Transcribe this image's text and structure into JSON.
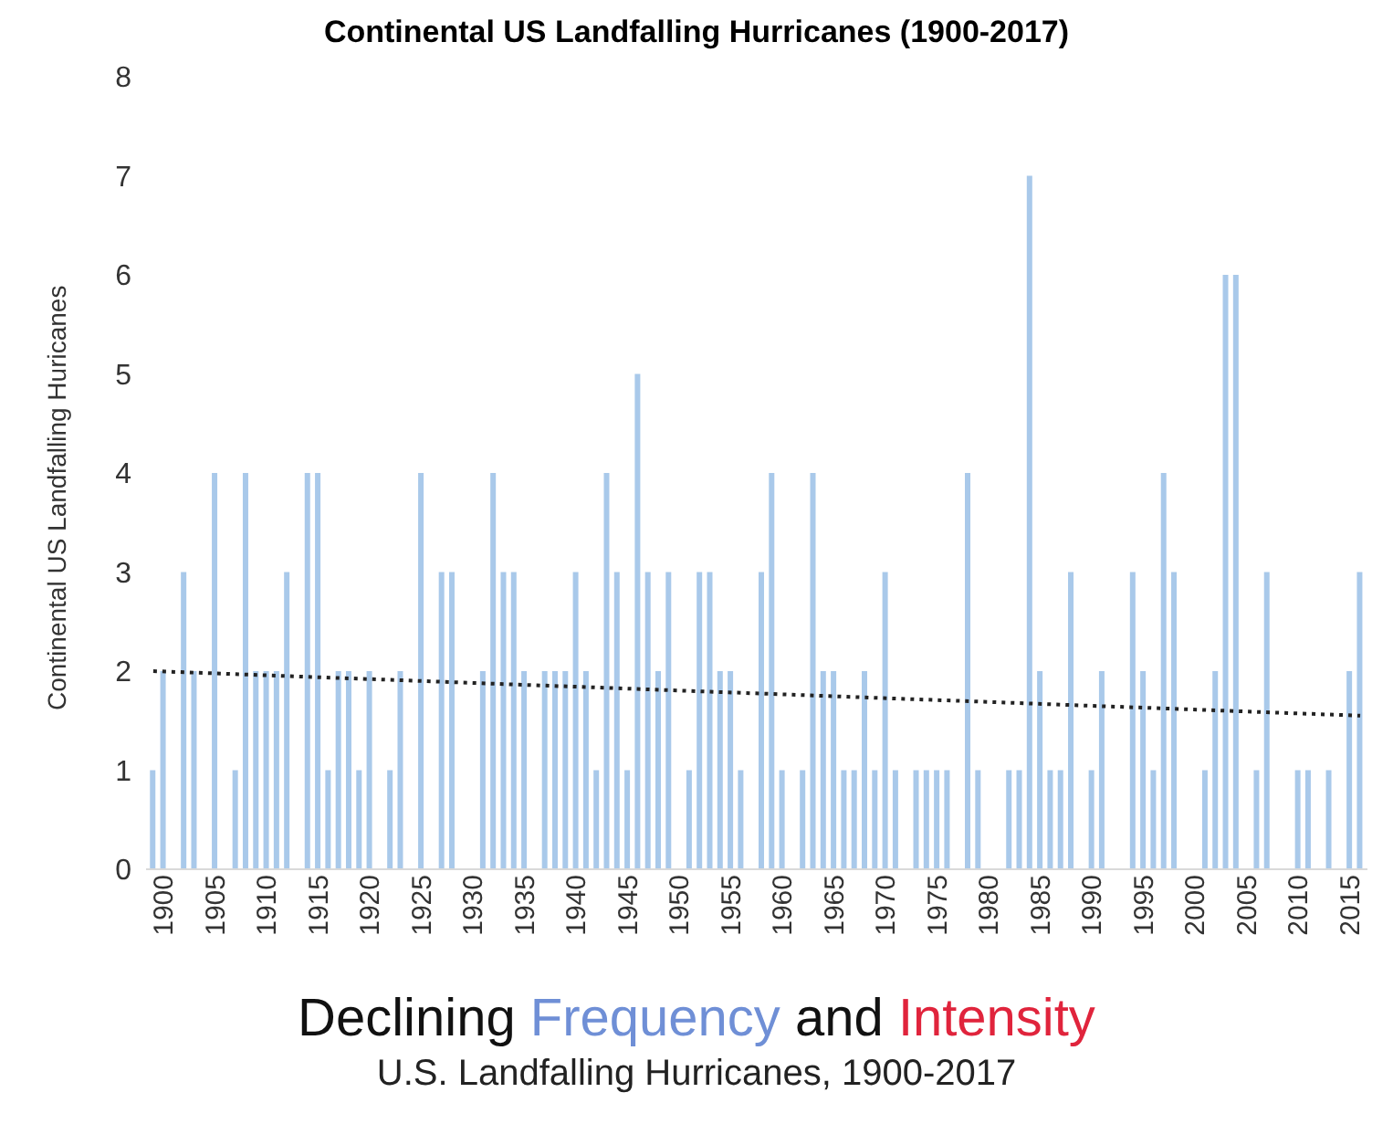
{
  "chart_data": {
    "type": "bar",
    "title": "Continental US Landfalling Hurricanes (1900-2017)",
    "ylabel": "Continental US Landfalling Huricanes",
    "x": [
      1900,
      1901,
      1902,
      1903,
      1904,
      1905,
      1906,
      1907,
      1908,
      1909,
      1910,
      1911,
      1912,
      1913,
      1914,
      1915,
      1916,
      1917,
      1918,
      1919,
      1920,
      1921,
      1922,
      1923,
      1924,
      1925,
      1926,
      1927,
      1928,
      1929,
      1930,
      1931,
      1932,
      1933,
      1934,
      1935,
      1936,
      1937,
      1938,
      1939,
      1940,
      1941,
      1942,
      1943,
      1944,
      1945,
      1946,
      1947,
      1948,
      1949,
      1950,
      1951,
      1952,
      1953,
      1954,
      1955,
      1956,
      1957,
      1958,
      1959,
      1960,
      1961,
      1962,
      1963,
      1964,
      1965,
      1966,
      1967,
      1968,
      1969,
      1970,
      1971,
      1972,
      1973,
      1974,
      1975,
      1976,
      1977,
      1978,
      1979,
      1980,
      1981,
      1982,
      1983,
      1984,
      1985,
      1986,
      1987,
      1988,
      1989,
      1990,
      1991,
      1992,
      1993,
      1994,
      1995,
      1996,
      1997,
      1998,
      1999,
      2000,
      2001,
      2002,
      2003,
      2004,
      2005,
      2006,
      2007,
      2008,
      2009,
      2010,
      2011,
      2012,
      2013,
      2014,
      2015,
      2016,
      2017
    ],
    "series": [
      {
        "color": "#a9c9ea",
        "values": [
          1,
          2,
          0,
          3,
          2,
          0,
          4,
          0,
          1,
          4,
          2,
          2,
          2,
          3,
          0,
          4,
          4,
          1,
          2,
          2,
          1,
          2,
          0,
          1,
          2,
          0,
          4,
          0,
          3,
          3,
          0,
          0,
          2,
          4,
          3,
          3,
          2,
          0,
          2,
          2,
          2,
          3,
          2,
          1,
          4,
          3,
          1,
          5,
          3,
          2,
          3,
          0,
          1,
          3,
          3,
          2,
          2,
          1,
          0,
          3,
          4,
          1,
          0,
          1,
          4,
          2,
          2,
          1,
          1,
          2,
          1,
          3,
          1,
          0,
          1,
          1,
          1,
          1,
          0,
          4,
          1,
          0,
          0,
          1,
          1,
          7,
          2,
          1,
          1,
          3,
          0,
          1,
          2,
          0,
          0,
          3,
          2,
          1,
          4,
          3,
          0,
          0,
          1,
          2,
          6,
          6,
          0,
          1,
          3,
          0,
          0,
          1,
          1,
          0,
          1,
          0,
          2,
          3
        ]
      },
      {
        "type": "line",
        "color": "#222222",
        "line_style": "dotted",
        "x": [
          1900,
          2017
        ],
        "values": [
          2.0,
          1.55
        ]
      }
    ],
    "xlim": [
      1899.3,
      2017.7
    ],
    "xticks": [
      1900,
      1905,
      1910,
      1915,
      1920,
      1925,
      1930,
      1935,
      1940,
      1945,
      1950,
      1955,
      1960,
      1965,
      1970,
      1975,
      1980,
      1985,
      1990,
      1995,
      2000,
      2005,
      2010,
      2015
    ],
    "ylim": [
      0,
      8
    ],
    "yticks": [
      0,
      1,
      2,
      3,
      4,
      5,
      6,
      7,
      8
    ],
    "annotations": [
      "Declining Frequency and Intensity",
      "U.S. Landfalling Hurricanes, 1900-2017"
    ]
  }
}
